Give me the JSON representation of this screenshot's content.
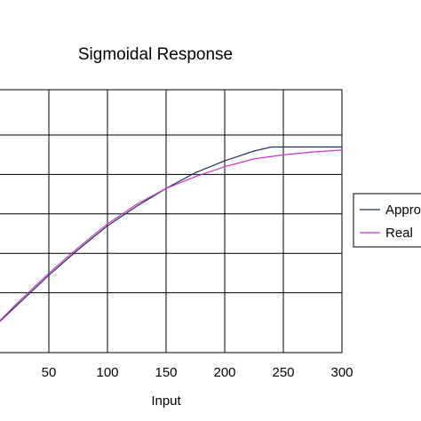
{
  "chart_data": {
    "type": "line",
    "title": "Sigmoidal Response",
    "xlabel": "Input",
    "ylabel": "",
    "xlim": [
      0,
      300
    ],
    "ylim": [
      0,
      1.1
    ],
    "x_ticks": [
      "50",
      "100",
      "150",
      "200",
      "250",
      "300"
    ],
    "grid": true,
    "legend_position": "right",
    "series": [
      {
        "name": "Approx",
        "color": "#1f2f5a",
        "x": [
          0,
          25,
          50,
          75,
          100,
          125,
          150,
          175,
          200,
          225,
          240,
          260,
          280,
          300
        ],
        "y": [
          0.0,
          0.14,
          0.28,
          0.41,
          0.53,
          0.63,
          0.72,
          0.8,
          0.86,
          0.91,
          0.93,
          0.93,
          0.93,
          0.93
        ]
      },
      {
        "name": "Real",
        "color": "#cc33cc",
        "x": [
          0,
          25,
          50,
          75,
          100,
          125,
          150,
          175,
          200,
          225,
          250,
          275,
          300
        ],
        "y": [
          0.0,
          0.15,
          0.29,
          0.42,
          0.54,
          0.64,
          0.72,
          0.78,
          0.83,
          0.87,
          0.89,
          0.905,
          0.915
        ]
      }
    ]
  }
}
